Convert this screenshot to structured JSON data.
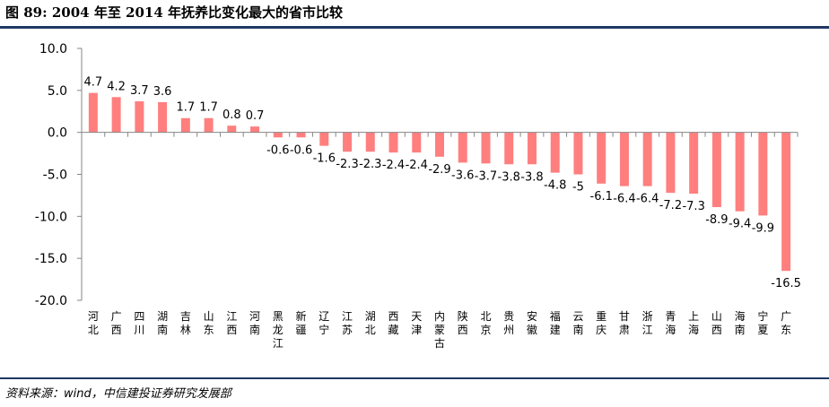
{
  "figure": {
    "title": "图 89: 2004 年至 2014 年抚养比变化最大的省市比较",
    "source": "资料来源：wind，中信建投证券研究发展部"
  },
  "colors": {
    "bar": "#ff7f7f",
    "rule": "#1f3864",
    "axis": "#868686"
  },
  "chart_data": {
    "type": "bar",
    "title": "",
    "xlabel": "",
    "ylabel": "",
    "ylim": [
      -20,
      10
    ],
    "yticks": [
      10,
      5,
      0,
      -5,
      -10,
      -15,
      -20
    ],
    "ytick_labels": [
      "10.0",
      "5.0",
      "0.0",
      "-5.0",
      "-10.0",
      "-15.0",
      "-20.0"
    ],
    "grid": false,
    "legend": "none",
    "categories": [
      "河北",
      "广西",
      "四川",
      "湖南",
      "吉林",
      "山东",
      "江西",
      "河南",
      "黑龙江",
      "新疆",
      "辽宁",
      "江苏",
      "湖北",
      "西藏",
      "天津",
      "内蒙古",
      "陕西",
      "北京",
      "贵州",
      "安徽",
      "福建",
      "云南",
      "重庆",
      "甘肃",
      "浙江",
      "青海",
      "上海",
      "山西",
      "海南",
      "宁夏",
      "广东"
    ],
    "values": [
      4.7,
      4.2,
      3.7,
      3.6,
      1.7,
      1.7,
      0.8,
      0.7,
      -0.6,
      -0.6,
      -1.6,
      -2.3,
      -2.3,
      -2.4,
      -2.4,
      -2.9,
      -3.6,
      -3.7,
      -3.8,
      -3.8,
      -4.8,
      -5.0,
      -6.1,
      -6.4,
      -6.4,
      -7.2,
      -7.3,
      -8.9,
      -9.4,
      -9.9,
      -16.5
    ]
  }
}
